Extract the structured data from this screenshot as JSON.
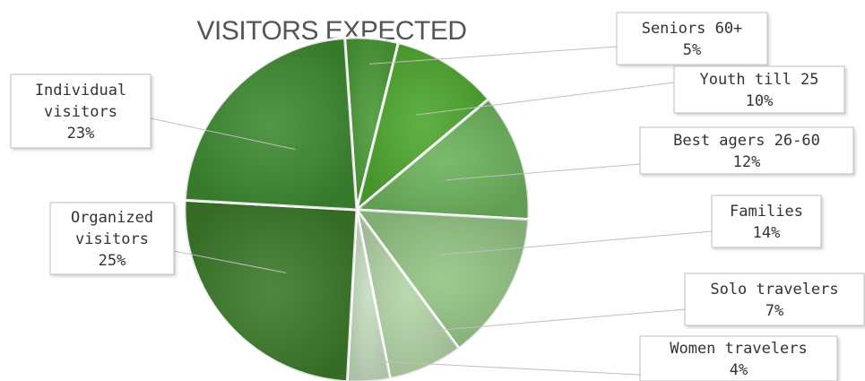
{
  "chart_data": {
    "type": "pie",
    "title": "VISITORS EXPECTED",
    "slices": [
      {
        "label_lines": [
          "Seniors 60+"
        ],
        "value_label": "5%",
        "value": 5,
        "color": "#4a9a37"
      },
      {
        "label_lines": [
          "Youth till 25"
        ],
        "value_label": "10%",
        "value": 10,
        "color": "#4ea72f"
      },
      {
        "label_lines": [
          "Best agers 26-60"
        ],
        "value_label": "12%",
        "value": 12,
        "color": "#6db35c"
      },
      {
        "label_lines": [
          "Families"
        ],
        "value_label": "14%",
        "value": 14,
        "color": "#94c585"
      },
      {
        "label_lines": [
          "Solo travelers"
        ],
        "value_label": "7%",
        "value": 7,
        "color": "#b3d4a7"
      },
      {
        "label_lines": [
          "Women travelers"
        ],
        "value_label": "4%",
        "value": 4,
        "color": "#c5dcbf"
      },
      {
        "label_lines": [
          "Organized",
          "visitors"
        ],
        "value_label": "25%",
        "value": 25,
        "color": "#3c7a2a"
      },
      {
        "label_lines": [
          "Individual",
          "visitors"
        ],
        "value_label": "23%",
        "value": 23,
        "color": "#3f8a31"
      }
    ]
  }
}
